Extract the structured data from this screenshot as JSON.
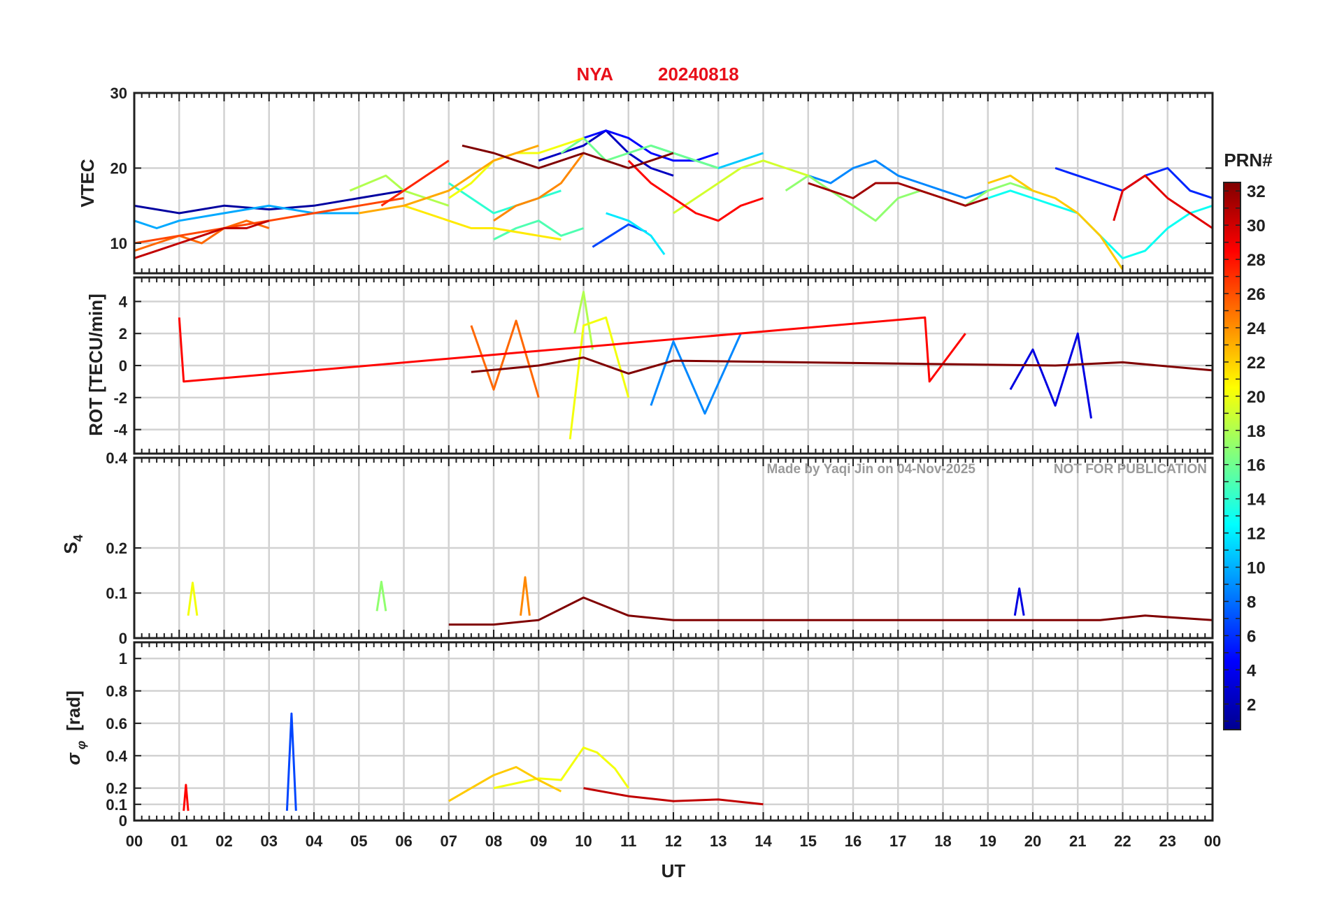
{
  "title": {
    "station": "NYA",
    "date": "20240818"
  },
  "watermark": {
    "author": "Made by Yaqi Jin on 04-Nov-2025",
    "notice": "NOT FOR PUBLICATION"
  },
  "colorbar": {
    "label": "PRN#",
    "ticks": [
      2,
      4,
      6,
      8,
      10,
      12,
      14,
      16,
      18,
      20,
      22,
      24,
      26,
      28,
      30,
      32
    ],
    "range": [
      1,
      32
    ]
  },
  "chart_data": [
    {
      "type": "line",
      "panel": "vtec",
      "ylabel": "VTEC",
      "ylim": [
        6,
        30
      ],
      "yticks": [
        10,
        20,
        30
      ],
      "ytick_labels": [
        "10",
        "20",
        "30"
      ],
      "xlim": [
        0,
        24
      ],
      "grid": true,
      "series": [
        {
          "prn": 2,
          "x": [
            0,
            1,
            2,
            3,
            4,
            5,
            6
          ],
          "y": [
            15,
            14,
            15,
            14.5,
            15,
            16,
            17
          ]
        },
        {
          "prn": 3,
          "x": [
            9,
            9.5,
            10,
            10.5,
            11,
            11.5,
            12
          ],
          "y": [
            21,
            22,
            23,
            25,
            22,
            20,
            19
          ]
        },
        {
          "prn": 5,
          "x": [
            10,
            10.5,
            11,
            11.5,
            12,
            12.5,
            13
          ],
          "y": [
            24,
            25,
            24,
            22,
            21,
            21,
            22
          ]
        },
        {
          "prn": 6,
          "x": [
            20.5,
            21,
            21.5,
            22,
            22.5,
            23,
            23.5,
            24
          ],
          "y": [
            20,
            19,
            18,
            17,
            19,
            20,
            17,
            16
          ]
        },
        {
          "prn": 7,
          "x": [
            10.2,
            10.6,
            11,
            11.4
          ],
          "y": [
            9.5,
            11,
            12.5,
            11.5
          ]
        },
        {
          "prn": 9,
          "x": [
            15,
            15.5,
            16,
            16.5,
            17,
            17.5,
            18,
            18.5,
            19
          ],
          "y": [
            19,
            18,
            20,
            21,
            19,
            18,
            17,
            16,
            17
          ]
        },
        {
          "prn": 10,
          "x": [
            0,
            0.5,
            1,
            2,
            3,
            4,
            5
          ],
          "y": [
            13,
            12,
            13,
            14,
            15,
            14,
            14
          ]
        },
        {
          "prn": 11,
          "x": [
            11.5,
            12,
            12.5,
            13,
            13.5,
            14
          ],
          "y": [
            23,
            22,
            21,
            20,
            21,
            22
          ]
        },
        {
          "prn": 12,
          "x": [
            10.5,
            11,
            11.5,
            11.8
          ],
          "y": [
            14,
            13,
            11,
            8.5
          ]
        },
        {
          "prn": 13,
          "x": [
            19,
            19.5,
            20,
            20.5,
            21,
            21.5,
            22,
            22.5,
            23,
            23.5,
            24
          ],
          "y": [
            16,
            17,
            16,
            15,
            14,
            11,
            8,
            9,
            12,
            14,
            15
          ]
        },
        {
          "prn": 14,
          "x": [
            7,
            7.5,
            8,
            8.5,
            9,
            9.5
          ],
          "y": [
            18,
            16,
            14,
            15,
            16,
            17
          ]
        },
        {
          "prn": 15,
          "x": [
            8,
            8.5,
            9,
            9.5,
            10
          ],
          "y": [
            10.5,
            12,
            13,
            11,
            12
          ]
        },
        {
          "prn": 16,
          "x": [
            9.5,
            10,
            10.5,
            11,
            11.5,
            12,
            12.5,
            13
          ],
          "y": [
            22,
            24,
            21,
            22,
            23,
            22,
            21,
            20
          ]
        },
        {
          "prn": 17,
          "x": [
            14.5,
            15,
            15.5,
            16,
            16.5,
            17,
            17.5,
            18,
            18.5,
            19,
            19.5,
            20
          ],
          "y": [
            17,
            19,
            17,
            15,
            13,
            16,
            17,
            16,
            15,
            17,
            18,
            17
          ]
        },
        {
          "prn": 18,
          "x": [
            4.8,
            5.2,
            5.6,
            6,
            6.5,
            7
          ],
          "y": [
            17,
            18,
            19,
            17,
            16,
            15
          ]
        },
        {
          "prn": 19,
          "x": [
            12,
            12.5,
            13,
            13.5,
            14,
            14.5,
            15
          ],
          "y": [
            14,
            16,
            18,
            20,
            21,
            20,
            19
          ]
        },
        {
          "prn": 20,
          "x": [
            7,
            7.5,
            8,
            8.5,
            9,
            9.5,
            10
          ],
          "y": [
            16,
            18,
            21,
            22,
            22,
            23,
            24
          ]
        },
        {
          "prn": 21,
          "x": [
            6,
            6.5,
            7,
            7.5,
            8,
            8.5,
            9,
            9.5
          ],
          "y": [
            15,
            14,
            13,
            12,
            12,
            11.5,
            11,
            10.5
          ]
        },
        {
          "prn": 22,
          "x": [
            19,
            19.5,
            20,
            20.5,
            21,
            21.5,
            22
          ],
          "y": [
            18,
            19,
            17,
            16,
            14,
            11,
            6.5
          ]
        },
        {
          "prn": 23,
          "x": [
            5,
            6,
            7,
            7.5,
            8,
            8.5,
            9
          ],
          "y": [
            14,
            15,
            17,
            19,
            21,
            22,
            23
          ]
        },
        {
          "prn": 24,
          "x": [
            8,
            8.5,
            9,
            9.5,
            10
          ],
          "y": [
            13,
            15,
            16,
            18,
            22
          ]
        },
        {
          "prn": 25,
          "x": [
            0,
            0.5,
            1,
            1.5,
            2,
            2.5,
            3
          ],
          "y": [
            9,
            10,
            11,
            10,
            12,
            13,
            12
          ]
        },
        {
          "prn": 26,
          "x": [
            0,
            1,
            2,
            3,
            4,
            5,
            6
          ],
          "y": [
            10,
            11,
            12,
            13,
            14,
            15,
            16
          ]
        },
        {
          "prn": 27,
          "x": [
            5.5,
            6,
            6.5,
            7
          ],
          "y": [
            15,
            17,
            19,
            21
          ]
        },
        {
          "prn": 28,
          "x": [
            11,
            11.5,
            12,
            12.5,
            13,
            13.5,
            14
          ],
          "y": [
            21,
            18,
            16,
            14,
            13,
            15,
            16
          ]
        },
        {
          "prn": 29,
          "x": [
            21.8,
            22,
            22.5,
            23,
            23.5,
            24
          ],
          "y": [
            13,
            17,
            19,
            16,
            14,
            12
          ]
        },
        {
          "prn": 30,
          "x": [
            0,
            0.5,
            1,
            1.5,
            2,
            2.5,
            3
          ],
          "y": [
            8,
            9,
            10,
            11,
            12,
            12,
            13
          ]
        },
        {
          "prn": 31,
          "x": [
            15,
            15.5,
            16,
            16.5,
            17,
            17.5,
            18,
            18.5,
            19
          ],
          "y": [
            18,
            17,
            16,
            18,
            18,
            17,
            16,
            15,
            16
          ]
        },
        {
          "prn": 32,
          "x": [
            7.3,
            8,
            8.5,
            9,
            9.5,
            10,
            10.5,
            11,
            11.5,
            12
          ],
          "y": [
            23,
            22,
            21,
            20,
            21,
            22,
            21,
            20,
            21,
            22
          ]
        }
      ]
    },
    {
      "type": "line",
      "panel": "rot",
      "ylabel": "ROT [TECU/min]",
      "ylim": [
        -5.5,
        5.5
      ],
      "yticks": [
        -4,
        -2,
        0,
        2,
        4
      ],
      "ytick_labels": [
        "-4",
        "-2",
        "0",
        "2",
        "4"
      ],
      "xlim": [
        0,
        24
      ],
      "grid": true,
      "series": [
        {
          "prn": 4,
          "x": [
            19.5,
            20,
            20.5,
            21,
            21.3
          ],
          "y": [
            -1.5,
            1,
            -2.5,
            2,
            -3.3
          ]
        },
        {
          "prn": 9,
          "x": [
            11.5,
            12,
            12.7,
            13.5
          ],
          "y": [
            -2.5,
            1.5,
            -3,
            2
          ]
        },
        {
          "prn": 18,
          "x": [
            9.8,
            10,
            10.2
          ],
          "y": [
            2,
            4.6,
            1
          ]
        },
        {
          "prn": 20,
          "x": [
            9.7,
            10,
            10.5,
            11
          ],
          "y": [
            -4.6,
            2.5,
            3,
            -2
          ]
        },
        {
          "prn": 25,
          "x": [
            7.5,
            8,
            8.5,
            9
          ],
          "y": [
            2.5,
            -1.5,
            2.8,
            -2
          ]
        },
        {
          "prn": 28,
          "x": [
            1,
            1.1,
            17.6,
            17.7,
            18.5
          ],
          "y": [
            3,
            -1,
            3,
            -1,
            2
          ]
        },
        {
          "prn": 32,
          "x": [
            7.5,
            9,
            10,
            11,
            12,
            20.5,
            22,
            24
          ],
          "y": [
            -0.4,
            0,
            0.5,
            -0.5,
            0.3,
            0,
            0.2,
            -0.3
          ]
        }
      ]
    },
    {
      "type": "line",
      "panel": "s4",
      "ylabel": "S4",
      "ylim": [
        0,
        0.4
      ],
      "yticks": [
        0,
        0.1,
        0.2,
        0.4
      ],
      "ytick_labels": [
        "0",
        "0.1",
        "0.2",
        "0.4"
      ],
      "xlim": [
        0,
        24
      ],
      "grid": true,
      "series": [
        {
          "prn": 4,
          "x": [
            19.6,
            19.7,
            19.8
          ],
          "y": [
            0.05,
            0.11,
            0.05
          ]
        },
        {
          "prn": 17,
          "x": [
            5.4,
            5.5,
            5.6
          ],
          "y": [
            0.06,
            0.125,
            0.06
          ]
        },
        {
          "prn": 20,
          "x": [
            1.2,
            1.3,
            1.4
          ],
          "y": [
            0.05,
            0.123,
            0.05
          ]
        },
        {
          "prn": 24,
          "x": [
            8.6,
            8.7,
            8.8
          ],
          "y": [
            0.05,
            0.135,
            0.05
          ]
        },
        {
          "prn": 32,
          "x": [
            7,
            8,
            9,
            10,
            11,
            12,
            20.5,
            21.5,
            22.5,
            24
          ],
          "y": [
            0.03,
            0.03,
            0.04,
            0.09,
            0.05,
            0.04,
            0.04,
            0.04,
            0.05,
            0.04
          ]
        }
      ]
    },
    {
      "type": "line",
      "panel": "sigma_phi",
      "ylabel": "σ φ [rad]",
      "ylim": [
        0,
        1.1
      ],
      "yticks": [
        0,
        0.1,
        0.2,
        0.4,
        0.6,
        0.8,
        1
      ],
      "ytick_labels": [
        "0",
        "0.1",
        "0.2",
        "0.4",
        "0.6",
        "0.8",
        "1"
      ],
      "xlim": [
        0,
        24
      ],
      "grid": true,
      "series": [
        {
          "prn": 7,
          "x": [
            3.4,
            3.5,
            3.6
          ],
          "y": [
            0.06,
            0.66,
            0.06
          ]
        },
        {
          "prn": 20,
          "x": [
            8,
            9,
            9.5,
            10,
            10.3,
            10.7,
            11
          ],
          "y": [
            0.2,
            0.26,
            0.25,
            0.45,
            0.42,
            0.32,
            0.2
          ]
        },
        {
          "prn": 22,
          "x": [
            7,
            7.5,
            8,
            8.5,
            9,
            9.5
          ],
          "y": [
            0.12,
            0.2,
            0.28,
            0.33,
            0.25,
            0.18
          ]
        },
        {
          "prn": 28,
          "x": [
            1.1,
            1.15,
            1.2
          ],
          "y": [
            0.06,
            0.22,
            0.06
          ]
        },
        {
          "prn": 30,
          "x": [
            10,
            11,
            12,
            13,
            14
          ],
          "y": [
            0.2,
            0.15,
            0.12,
            0.13,
            0.1
          ]
        }
      ]
    }
  ],
  "xaxis": {
    "label": "UT",
    "range": [
      0,
      24
    ],
    "tick_labels": [
      "00",
      "01",
      "02",
      "03",
      "04",
      "05",
      "06",
      "07",
      "08",
      "09",
      "10",
      "11",
      "12",
      "13",
      "14",
      "15",
      "16",
      "17",
      "18",
      "19",
      "20",
      "21",
      "22",
      "23",
      "00"
    ]
  }
}
